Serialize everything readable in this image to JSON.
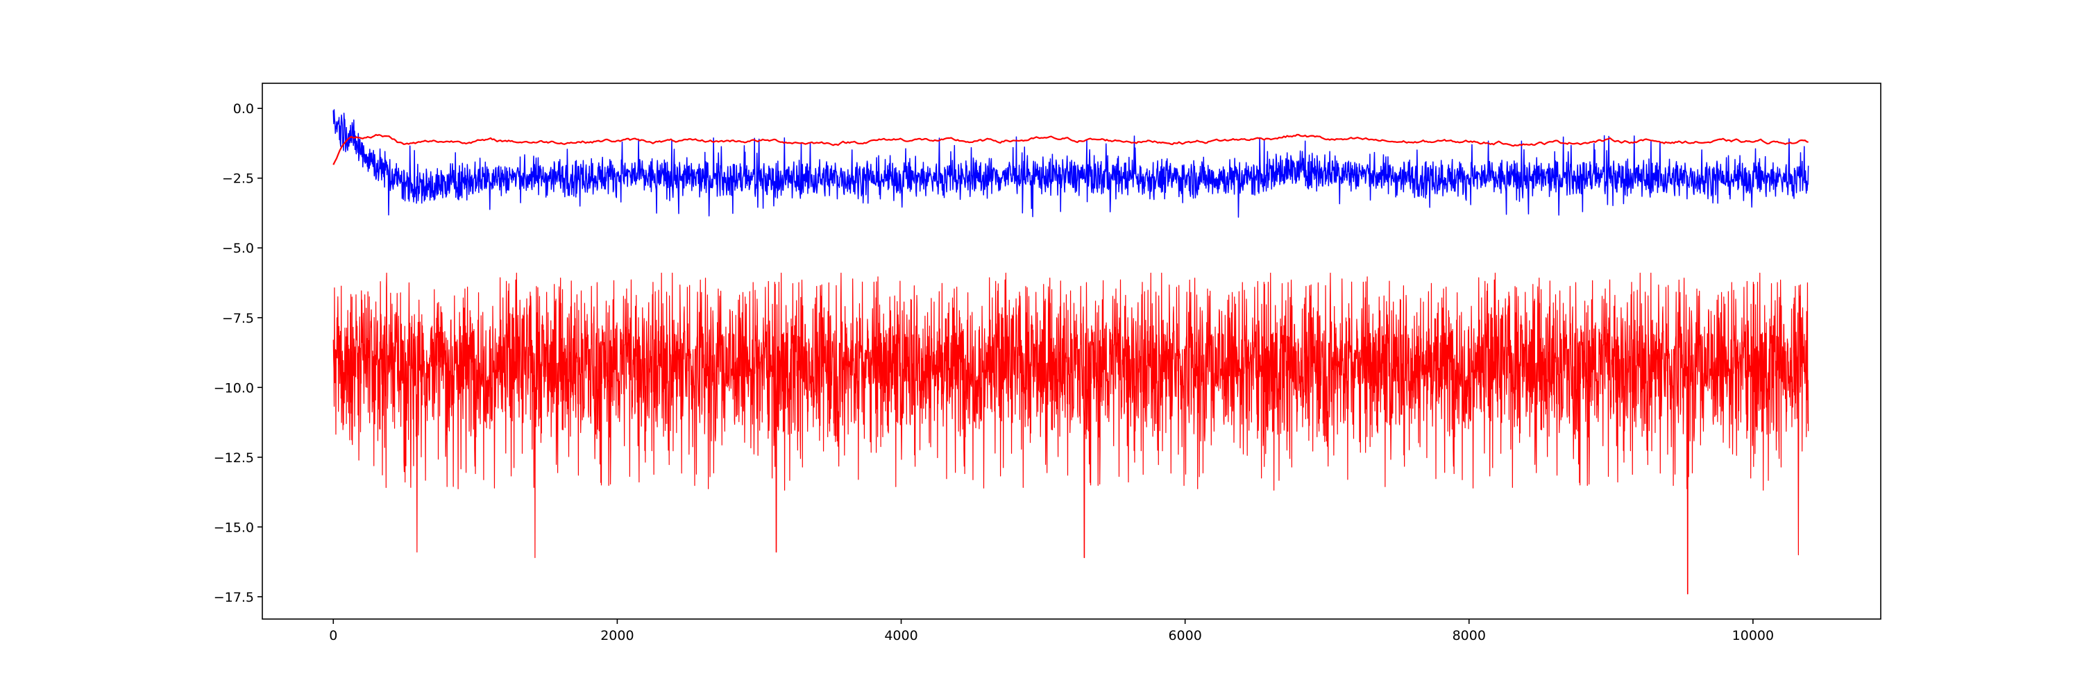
{
  "chart_data": {
    "type": "line",
    "title": "",
    "xlabel": "",
    "ylabel": "",
    "xlim": [
      -500,
      10900
    ],
    "ylim": [
      -18.3,
      0.9
    ],
    "grid": false,
    "legend": null,
    "x_ticks": [
      {
        "value": 0,
        "label": "0"
      },
      {
        "value": 2000,
        "label": "2000"
      },
      {
        "value": 4000,
        "label": "4000"
      },
      {
        "value": 6000,
        "label": "6000"
      },
      {
        "value": 8000,
        "label": "8000"
      },
      {
        "value": 10000,
        "label": "10000"
      }
    ],
    "y_ticks": [
      {
        "value": 0.0,
        "label": "0.0"
      },
      {
        "value": -2.5,
        "label": "−2.5"
      },
      {
        "value": -5.0,
        "label": "−5.0"
      },
      {
        "value": -7.5,
        "label": "−7.5"
      },
      {
        "value": -10.0,
        "label": "−10.0"
      },
      {
        "value": -12.5,
        "label": "−12.5"
      },
      {
        "value": -15.0,
        "label": "−15.0"
      },
      {
        "value": -17.5,
        "label": "−17.5"
      }
    ],
    "series": [
      {
        "color": "#ff0000",
        "style": "smooth upper band",
        "x": [
          0,
          50,
          100,
          200,
          300,
          400,
          500,
          700,
          1000,
          1500,
          2000,
          2500,
          3000,
          3500,
          4000,
          4500,
          5000,
          5500,
          6000,
          6500,
          6800,
          7000,
          7500,
          8000,
          8500,
          9000,
          9500,
          10000,
          10390
        ],
        "values": [
          -2.0,
          -1.5,
          -1.1,
          -1.0,
          -0.95,
          -1.05,
          -1.3,
          -1.2,
          -1.15,
          -1.2,
          -1.15,
          -1.2,
          -1.15,
          -1.25,
          -1.1,
          -1.2,
          -1.1,
          -1.15,
          -1.2,
          -1.1,
          -0.95,
          -1.1,
          -1.2,
          -1.2,
          -1.25,
          -1.15,
          -1.2,
          -1.2,
          -1.2
        ]
      },
      {
        "color": "#0000ff",
        "style": "noisy middle band",
        "x": [
          0,
          50,
          100,
          200,
          300,
          400,
          500,
          600,
          700,
          1000,
          1500,
          2000,
          2500,
          3000,
          3500,
          4000,
          4500,
          5000,
          5500,
          6000,
          6500,
          6700,
          7000,
          7500,
          8000,
          8500,
          9000,
          9500,
          10000,
          10390
        ],
        "values": [
          -0.5,
          -0.7,
          -0.9,
          -1.5,
          -2.0,
          -2.4,
          -2.7,
          -2.85,
          -2.8,
          -2.5,
          -2.45,
          -2.4,
          -2.5,
          -2.55,
          -2.5,
          -2.5,
          -2.45,
          -2.4,
          -2.45,
          -2.5,
          -2.5,
          -2.2,
          -2.25,
          -2.45,
          -2.5,
          -2.5,
          -2.45,
          -2.5,
          -2.5,
          -2.5
        ],
        "band_halfwidth": 0.55,
        "min": -3.9,
        "max": 0.0
      },
      {
        "color": "#ff0000",
        "style": "dense noisy lower band",
        "x": [
          0,
          10390
        ],
        "values": [
          -8.8,
          -8.8
        ],
        "typical_range": [
          -11.5,
          -6.8
        ],
        "min": -17.4,
        "max": -5.9,
        "notable_minima": [
          {
            "x": 590,
            "value": -15.9
          },
          {
            "x": 1420,
            "value": -16.1
          },
          {
            "x": 3120,
            "value": -15.9
          },
          {
            "x": 5290,
            "value": -16.1
          },
          {
            "x": 9540,
            "value": -17.4
          },
          {
            "x": 10320,
            "value": -16.0
          }
        ]
      }
    ]
  }
}
